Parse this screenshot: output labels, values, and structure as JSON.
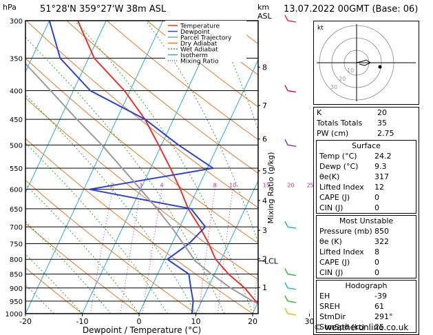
{
  "header": {
    "left_unit": "hPa",
    "location": "51°28'N  359°27'W  38m  ASL",
    "km_label": "km",
    "asl_label": "ASL",
    "datetime": "13.07.2022  00GMT  (Base: 06)"
  },
  "colors": {
    "temperature": "#e8322b",
    "dewpoint": "#2a3fd6",
    "parcel": "#9a9a9a",
    "dry_adiabat": "#e07a2a",
    "wet_adiabat": "#2aa82a",
    "isotherm": "#2aa9df",
    "mixing_ratio": "#d01f9b",
    "wind": "#1fb8c8"
  },
  "chart_data": {
    "type": "line",
    "title": "",
    "xlabel": "Dewpoint / Temperature (°C)",
    "ylabel_right": "Mixing Ratio (g/kg)",
    "xlim": [
      -35,
      40
    ],
    "ylim": [
      1000,
      300
    ],
    "x_ticks": [
      -30,
      -20,
      -10,
      0,
      10,
      20,
      30,
      40
    ],
    "pressure_levels": [
      300,
      350,
      400,
      450,
      500,
      550,
      600,
      650,
      700,
      750,
      800,
      850,
      900,
      950,
      1000
    ],
    "km_ticks": [
      {
        "label": "8",
        "p": 363
      },
      {
        "label": "7",
        "p": 425
      },
      {
        "label": "6",
        "p": 488
      },
      {
        "label": "5",
        "p": 556
      },
      {
        "label": "4",
        "p": 628
      },
      {
        "label": "3",
        "p": 710
      },
      {
        "label": "2",
        "p": 798
      },
      {
        "label": "1",
        "p": 898
      }
    ],
    "lcl_label": "LCL",
    "lcl_p": 805,
    "mixing_ratio_labels": [
      "2",
      "3",
      "4",
      "8",
      "10",
      "15",
      "20",
      "25"
    ],
    "legend": [
      "Temperature",
      "Dewpoint",
      "Parcel Trajectory",
      "Dry Adiabat",
      "Wet Adiabat",
      "Isotherm",
      "Mixing Ratio"
    ],
    "series": [
      {
        "name": "Temperature",
        "points": [
          [
            1000,
            24.2
          ],
          [
            950,
            19.5
          ],
          [
            900,
            16.5
          ],
          [
            850,
            12.5
          ],
          [
            800,
            9
          ],
          [
            750,
            6.5
          ],
          [
            700,
            3.5
          ],
          [
            650,
            0
          ],
          [
            600,
            -3
          ],
          [
            550,
            -6.5
          ],
          [
            500,
            -10.5
          ],
          [
            450,
            -15
          ],
          [
            400,
            -21
          ],
          [
            350,
            -29
          ],
          [
            300,
            -35
          ]
        ]
      },
      {
        "name": "Dewpoint",
        "points": [
          [
            1000,
            9.3
          ],
          [
            950,
            8.5
          ],
          [
            900,
            7
          ],
          [
            850,
            5.5
          ],
          [
            800,
            0.5
          ],
          [
            750,
            3
          ],
          [
            700,
            4.5
          ],
          [
            650,
            0.5
          ],
          [
            600,
            -19
          ],
          [
            550,
            1
          ],
          [
            500,
            -7
          ],
          [
            450,
            -15
          ],
          [
            400,
            -27
          ],
          [
            350,
            -35
          ],
          [
            300,
            -40
          ]
        ]
      },
      {
        "name": "Parcel Trajectory",
        "points": [
          [
            1000,
            24.2
          ],
          [
            950,
            19
          ],
          [
            900,
            14
          ],
          [
            850,
            9.5
          ],
          [
            805,
            5.5
          ],
          [
            750,
            2
          ],
          [
            700,
            -1.5
          ],
          [
            650,
            -5.5
          ],
          [
            600,
            -10
          ],
          [
            550,
            -15
          ],
          [
            500,
            -20.5
          ],
          [
            450,
            -27
          ],
          [
            400,
            -34
          ],
          [
            350,
            -42
          ],
          [
            300,
            -51
          ]
        ]
      }
    ]
  },
  "hodograph": {
    "label": "kt",
    "rings": [
      "10",
      "20",
      "30"
    ]
  },
  "indices": {
    "k_label": "K",
    "k_value": "20",
    "tt_label": "Totals Totals",
    "tt_value": "35",
    "pw_label": "PW (cm)",
    "pw_value": "2.75"
  },
  "surface": {
    "title": "Surface",
    "rows": [
      {
        "label": "Temp (°C)",
        "value": "24.2"
      },
      {
        "label": "Dewp (°C)",
        "value": "9.3"
      },
      {
        "label": "θe(K)",
        "value": "317"
      },
      {
        "label": "Lifted Index",
        "value": "12"
      },
      {
        "label": "CAPE (J)",
        "value": "0"
      },
      {
        "label": "CIN (J)",
        "value": "0"
      }
    ]
  },
  "most_unstable": {
    "title": "Most Unstable",
    "rows": [
      {
        "label": "Pressure (mb)",
        "value": "850"
      },
      {
        "label": "θe (K)",
        "value": "322"
      },
      {
        "label": "Lifted Index",
        "value": "8"
      },
      {
        "label": "CAPE (J)",
        "value": "0"
      },
      {
        "label": "CIN (J)",
        "value": "0"
      }
    ]
  },
  "hodo_table": {
    "title": "Hodograph",
    "rows": [
      {
        "label": "EH",
        "value": "-39"
      },
      {
        "label": "SREH",
        "value": "61"
      },
      {
        "label": "StmDir",
        "value": "291°"
      },
      {
        "label": "StmSpd (kt)",
        "value": "25"
      }
    ]
  },
  "footer": "© weatheronline.co.uk"
}
